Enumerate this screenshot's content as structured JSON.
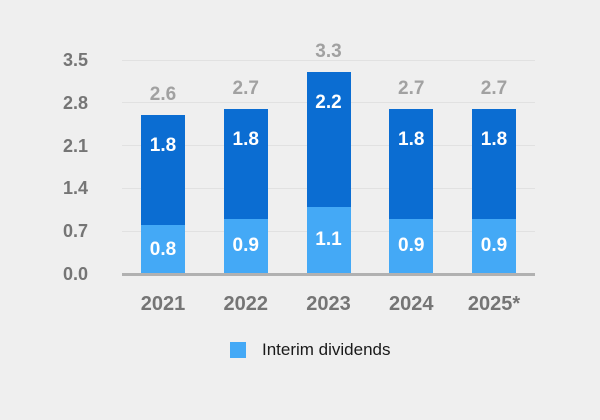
{
  "window": {
    "background": "#efefef"
  },
  "colors": {
    "interim_blue": "#44a9f6",
    "final_blue": "#0b6dd2",
    "gridline": "#e1e1e1",
    "axis_line": "#b1b1b1",
    "tick_label": "#757575",
    "year_label": "#757575",
    "total_label": "#a1a1a1",
    "in_bar_label": "#ffffff",
    "legend_text": "#1a1a1a"
  },
  "legend": {
    "label": "Interim dividends"
  },
  "chart_data": {
    "type": "bar",
    "stacked": true,
    "title": "",
    "xlabel": "",
    "ylabel": "",
    "categories": [
      "2021",
      "2022",
      "2023",
      "2024",
      "2025*"
    ],
    "series": [
      {
        "name": "Interim dividends",
        "color_key": "interim_blue",
        "values": [
          0.8,
          0.9,
          1.1,
          0.9,
          0.9
        ],
        "value_labels": [
          "0.8",
          "0.9",
          "1.1",
          "0.9",
          "0.9"
        ]
      },
      {
        "name": "",
        "color_key": "final_blue",
        "values": [
          1.8,
          1.8,
          2.2,
          1.8,
          1.8
        ],
        "value_labels": [
          "1.8",
          "1.8",
          "2.2",
          "1.8",
          "1.8"
        ]
      }
    ],
    "totals": [
      2.6,
      2.7,
      3.3,
      2.7,
      2.7
    ],
    "total_labels": [
      "2.6",
      "2.7",
      "3.3",
      "2.7",
      "2.7"
    ],
    "y_ticks": [
      0.0,
      0.7,
      1.4,
      2.1,
      2.8,
      3.5
    ],
    "y_tick_labels": [
      "0.0",
      "0.7",
      "1.4",
      "2.1",
      "2.8",
      "3.5"
    ],
    "ylim": [
      0,
      3.5
    ],
    "grid": true,
    "legend_position": "bottom"
  }
}
